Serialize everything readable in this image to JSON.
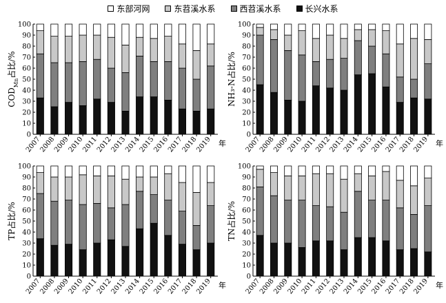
{
  "legend": [
    "东部河网",
    "东苕溪水系",
    "西苕溪水系",
    "长兴水系"
  ],
  "colors": [
    "#ffffff",
    "#c8c8c8",
    "#7f7f7f",
    "#111111"
  ],
  "year_suffix": "年",
  "chart_data": [
    {
      "type": "bar",
      "stacked": true,
      "ylabel": "COD_Mn占比/%",
      "ylim": [
        0,
        100
      ],
      "ytick_step": 10,
      "grid": false,
      "categories": [
        "2007",
        "2008",
        "2009",
        "2010",
        "2011",
        "2012",
        "2013",
        "2014",
        "2015",
        "2016",
        "2017",
        "2018",
        "2019"
      ],
      "series": [
        {
          "name": "长兴水系",
          "values": [
            33,
            25,
            29,
            26,
            32,
            29,
            21,
            34,
            34,
            31,
            23,
            21,
            23
          ]
        },
        {
          "name": "西苕溪水系",
          "values": [
            40,
            40,
            36,
            40,
            36,
            31,
            35,
            37,
            32,
            35,
            37,
            29,
            39
          ]
        },
        {
          "name": "东苕溪水系",
          "values": [
            21,
            24,
            24,
            24,
            22,
            28,
            25,
            17,
            21,
            23,
            22,
            26,
            20
          ]
        },
        {
          "name": "东部河网",
          "values": [
            6,
            11,
            11,
            10,
            10,
            12,
            19,
            12,
            13,
            11,
            18,
            24,
            18
          ]
        }
      ]
    },
    {
      "type": "bar",
      "stacked": true,
      "ylabel": "NH₃-N占比/%",
      "ylim": [
        0,
        100
      ],
      "ytick_step": 10,
      "grid": false,
      "categories": [
        "2007",
        "2008",
        "2009",
        "2010",
        "2011",
        "2012",
        "2013",
        "2014",
        "2015",
        "2016",
        "2017",
        "2018",
        "2019"
      ],
      "series": [
        {
          "name": "长兴水系",
          "values": [
            45,
            38,
            31,
            30,
            44,
            42,
            40,
            54,
            55,
            43,
            29,
            33,
            32
          ]
        },
        {
          "name": "西苕溪水系",
          "values": [
            45,
            48,
            45,
            42,
            22,
            26,
            29,
            31,
            25,
            30,
            23,
            17,
            32
          ]
        },
        {
          "name": "东苕溪水系",
          "values": [
            7,
            9,
            14,
            22,
            21,
            22,
            18,
            10,
            15,
            21,
            30,
            37,
            22
          ]
        },
        {
          "name": "东部河网",
          "values": [
            3,
            5,
            10,
            6,
            13,
            10,
            13,
            5,
            5,
            6,
            18,
            13,
            14
          ]
        }
      ]
    },
    {
      "type": "bar",
      "stacked": true,
      "ylabel": "TP占比/%",
      "ylim": [
        0,
        100
      ],
      "ytick_step": 10,
      "grid": false,
      "categories": [
        "2007",
        "2008",
        "2009",
        "2010",
        "2011",
        "2012",
        "2013",
        "2014",
        "2015",
        "2016",
        "2017",
        "2018",
        "2019"
      ],
      "series": [
        {
          "name": "长兴水系",
          "values": [
            34,
            28,
            29,
            24,
            30,
            33,
            27,
            43,
            48,
            37,
            29,
            24,
            30
          ]
        },
        {
          "name": "西苕溪水系",
          "values": [
            41,
            40,
            40,
            41,
            36,
            29,
            38,
            34,
            26,
            32,
            30,
            22,
            34
          ]
        },
        {
          "name": "东苕溪水系",
          "values": [
            19,
            22,
            21,
            27,
            25,
            29,
            23,
            13,
            16,
            24,
            26,
            30,
            21
          ]
        },
        {
          "name": "东部河网",
          "values": [
            6,
            10,
            10,
            8,
            9,
            9,
            12,
            10,
            10,
            7,
            15,
            24,
            15
          ]
        }
      ]
    },
    {
      "type": "bar",
      "stacked": true,
      "ylabel": "TN占比/%",
      "ylim": [
        0,
        100
      ],
      "ytick_step": 10,
      "grid": false,
      "categories": [
        "2007",
        "2008",
        "2009",
        "2010",
        "2011",
        "2012",
        "2013",
        "2014",
        "2015",
        "2016",
        "2017",
        "2018",
        "2019"
      ],
      "series": [
        {
          "name": "长兴水系",
          "values": [
            37,
            30,
            30,
            26,
            32,
            32,
            24,
            35,
            35,
            32,
            24,
            25,
            22
          ]
        },
        {
          "name": "西苕溪水系",
          "values": [
            44,
            43,
            39,
            43,
            32,
            31,
            34,
            42,
            34,
            37,
            38,
            31,
            42
          ]
        },
        {
          "name": "东苕溪水系",
          "values": [
            16,
            21,
            22,
            22,
            29,
            30,
            30,
            16,
            22,
            26,
            25,
            26,
            25
          ]
        },
        {
          "name": "东部河网",
          "values": [
            3,
            6,
            9,
            9,
            7,
            7,
            12,
            7,
            9,
            5,
            13,
            18,
            11
          ]
        }
      ]
    }
  ]
}
